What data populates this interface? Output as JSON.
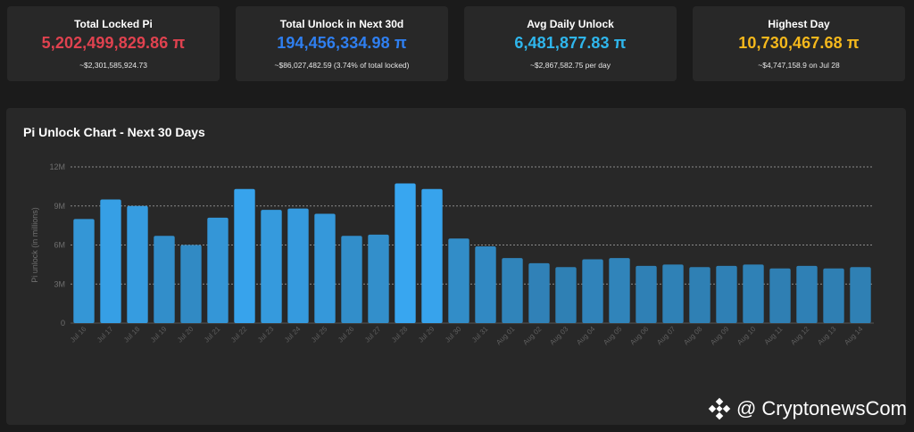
{
  "stats": [
    {
      "label": "Total Locked Pi",
      "value": "5,202,499,829.86 π",
      "sub": "~$2,301,585,924.73",
      "color": "#e0424f"
    },
    {
      "label": "Total Unlock in Next 30d",
      "value": "194,456,334.98 π",
      "sub": "~$86,027,482.59 (3.74% of total locked)",
      "color": "#2f7ff0"
    },
    {
      "label": "Avg Daily Unlock",
      "value": "6,481,877.83 π",
      "sub": "~$2,867,582.75 per day",
      "color": "#2fb6ec"
    },
    {
      "label": "Highest Day",
      "value": "10,730,467.68 π",
      "sub": "~$4,747,158.9 on Jul 28",
      "color": "#f5b81c"
    }
  ],
  "watermark": {
    "text": "@ CryptonewsCom",
    "icon": "binance-logo-icon"
  },
  "chart_data": {
    "type": "bar",
    "title": "Pi Unlock Chart - Next 30 Days",
    "xlabel": "",
    "ylabel": "Pi unlock (in millions)",
    "ylim": [
      0,
      12
    ],
    "yticks": [
      0,
      3,
      6,
      9,
      12
    ],
    "ytick_labels": [
      "0",
      "3M",
      "6M",
      "9M",
      "12M"
    ],
    "grid": true,
    "categories": [
      "Jul 16",
      "Jul 17",
      "Jul 18",
      "Jul 19",
      "Jul 20",
      "Jul 21",
      "Jul 22",
      "Jul 23",
      "Jul 24",
      "Jul 25",
      "Jul 26",
      "Jul 27",
      "Jul 28",
      "Jul 29",
      "Jul 30",
      "Jul 31",
      "Aug 01",
      "Aug 02",
      "Aug 03",
      "Aug 04",
      "Aug 05",
      "Aug 06",
      "Aug 07",
      "Aug 08",
      "Aug 09",
      "Aug 10",
      "Aug 11",
      "Aug 12",
      "Aug 13",
      "Aug 14"
    ],
    "values": [
      8.0,
      9.5,
      9.0,
      6.7,
      6.0,
      8.1,
      10.3,
      8.7,
      8.8,
      8.4,
      6.7,
      6.8,
      10.73,
      10.3,
      6.5,
      5.9,
      5.0,
      4.6,
      4.3,
      4.9,
      5.0,
      4.4,
      4.5,
      4.3,
      4.4,
      4.5,
      4.2,
      4.4,
      4.2,
      4.3
    ],
    "bar_color_high": "#38a6f0",
    "bar_color_low": "#2f7fb3"
  }
}
